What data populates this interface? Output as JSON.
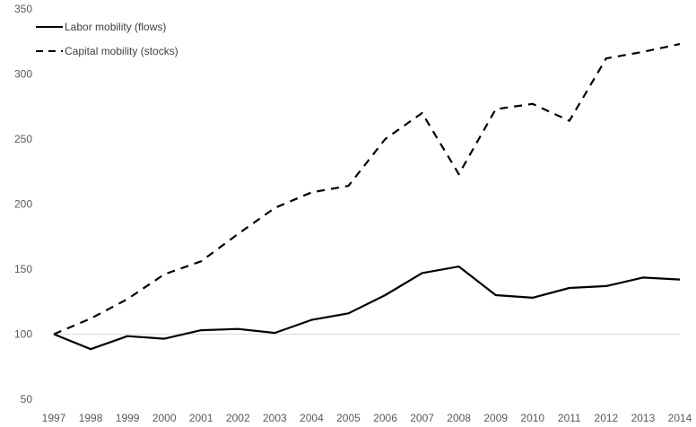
{
  "chart_data": {
    "type": "line",
    "title": "",
    "xlabel": "",
    "ylabel": "",
    "x": [
      "1997",
      "1998",
      "1999",
      "2000",
      "2001",
      "2002",
      "2003",
      "2004",
      "2005",
      "2006",
      "2007",
      "2008",
      "2009",
      "2010",
      "2011",
      "2012",
      "2013",
      "2014"
    ],
    "ylim": [
      50,
      350
    ],
    "yticks": [
      50,
      100,
      150,
      200,
      250,
      300,
      350
    ],
    "grid": false,
    "baseline_y": 100,
    "legend_position": "top-left",
    "series": [
      {
        "name": "Labor mobility (flows)",
        "style": "solid",
        "color": "#000000",
        "values": [
          100,
          88.5,
          98.5,
          96.5,
          103,
          104,
          101,
          111,
          116,
          130,
          147,
          152,
          130,
          128,
          135.5,
          137,
          143.5,
          142
        ]
      },
      {
        "name": "Capital mobility (stocks)",
        "style": "dashed",
        "color": "#000000",
        "values": [
          100,
          112,
          127,
          146,
          156,
          177,
          197,
          209,
          214,
          250,
          270,
          223,
          273,
          277,
          264,
          312,
          317,
          323
        ]
      }
    ]
  }
}
